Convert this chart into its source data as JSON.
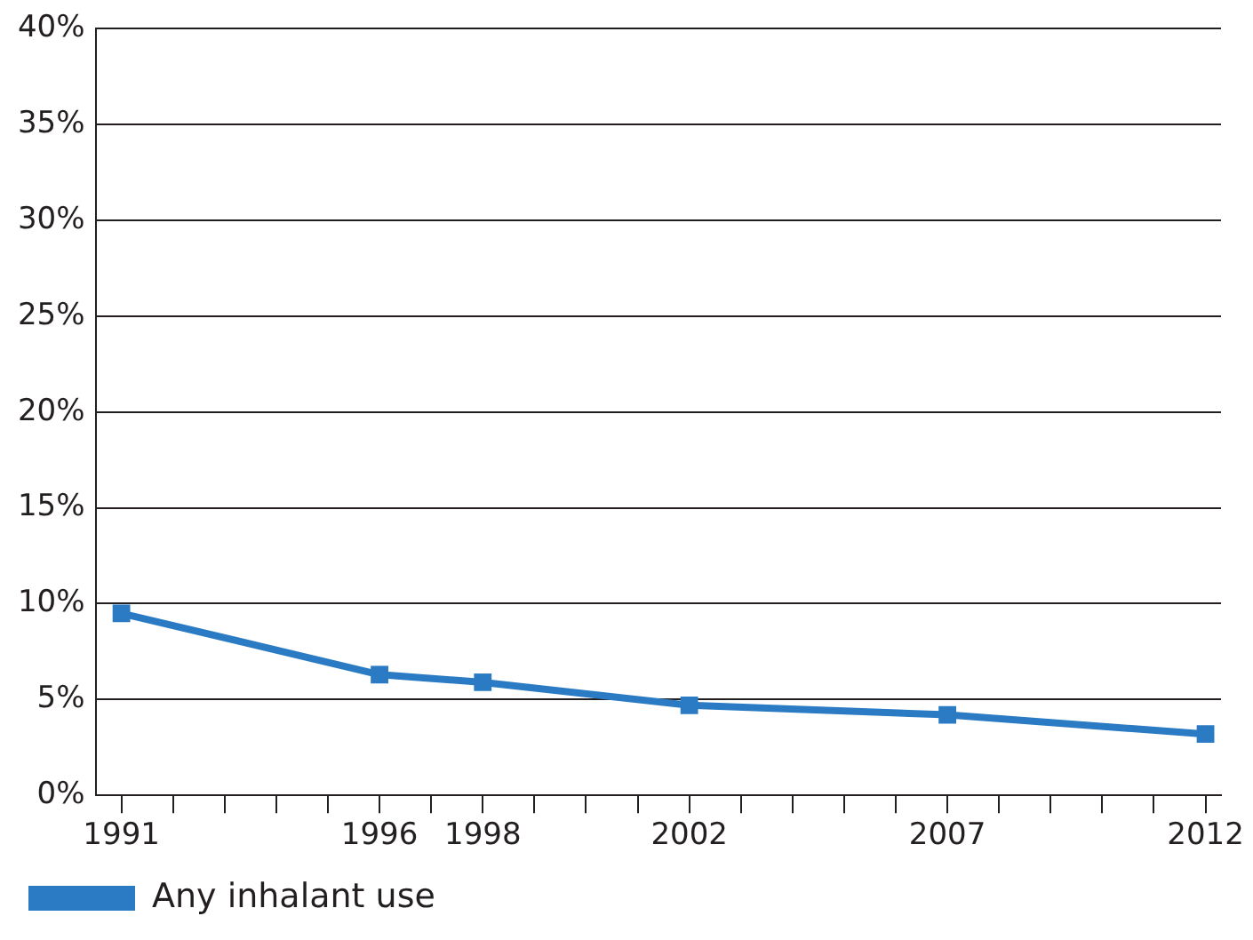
{
  "chart_data": {
    "type": "line",
    "x": [
      1991,
      1996,
      1998,
      2002,
      2007,
      2012
    ],
    "series": [
      {
        "name": "Any inhalant use",
        "color": "#2a7bc4",
        "values": [
          9.5,
          6.3,
          5.9,
          4.7,
          4.2,
          3.2
        ]
      }
    ],
    "xlim": [
      1990.5,
      2012.3
    ],
    "xticks": [
      {
        "value": 1991,
        "label": "1991"
      },
      {
        "value": 1992,
        "label": null
      },
      {
        "value": 1993,
        "label": null
      },
      {
        "value": 1994,
        "label": null
      },
      {
        "value": 1995,
        "label": null
      },
      {
        "value": 1996,
        "label": "1996"
      },
      {
        "value": 1997,
        "label": null
      },
      {
        "value": 1998,
        "label": "1998"
      },
      {
        "value": 1999,
        "label": null
      },
      {
        "value": 2000,
        "label": null
      },
      {
        "value": 2001,
        "label": null
      },
      {
        "value": 2002,
        "label": "2002"
      },
      {
        "value": 2003,
        "label": null
      },
      {
        "value": 2004,
        "label": null
      },
      {
        "value": 2005,
        "label": null
      },
      {
        "value": 2006,
        "label": null
      },
      {
        "value": 2007,
        "label": "2007"
      },
      {
        "value": 2008,
        "label": null
      },
      {
        "value": 2009,
        "label": null
      },
      {
        "value": 2010,
        "label": null
      },
      {
        "value": 2011,
        "label": null
      },
      {
        "value": 2012,
        "label": "2012"
      }
    ],
    "ylim": [
      0,
      40
    ],
    "yticks": [
      {
        "value": 0,
        "label": "0%"
      },
      {
        "value": 5,
        "label": "5%"
      },
      {
        "value": 10,
        "label": "10%"
      },
      {
        "value": 15,
        "label": "15%"
      },
      {
        "value": 20,
        "label": "20%"
      },
      {
        "value": 25,
        "label": "25%"
      },
      {
        "value": 30,
        "label": "30%"
      },
      {
        "value": 35,
        "label": "35%"
      },
      {
        "value": 40,
        "label": "40%"
      }
    ],
    "grid": "y",
    "legend": "bottom left",
    "marker": "square",
    "line_style": "solid"
  }
}
